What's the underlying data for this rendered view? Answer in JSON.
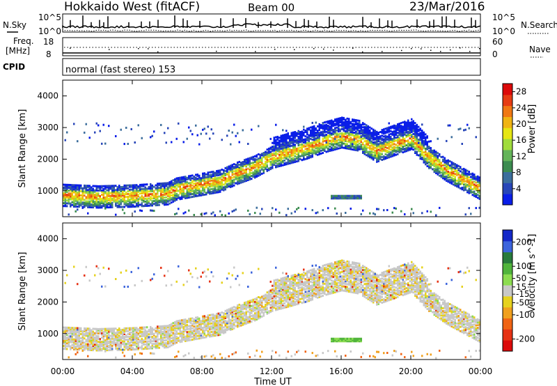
{
  "header": {
    "station": "Hokkaido West (fitACF)",
    "beam": "Beam 00",
    "date": "23/Mar/2016"
  },
  "strip": {
    "nsky_label": "N.Sky",
    "nsearch_label": "N.Search",
    "freq_label_1": "Freq.",
    "freq_label_2": "[MHz]",
    "nave_label": "Nave",
    "cpid_label": "CPID",
    "noise_tick_top": "10^5",
    "noise_tick_bottom": "10^0",
    "freq_tick_top": "18",
    "freq_tick_bottom": "8",
    "nave_tick_top": "60",
    "nave_tick_bottom": "0",
    "cpid_text": "normal (fast stereo) 153"
  },
  "colors": {
    "power": [
      "#0a1ee8",
      "#2846b8",
      "#3c6e9c",
      "#3c8c50",
      "#64b45a",
      "#a0dc3c",
      "#e6e614",
      "#f0b414",
      "#f07814",
      "#e63c14",
      "#dc0a0a"
    ],
    "velocity": [
      "#1428c8",
      "#3c64dc",
      "#287a3c",
      "#50b43c",
      "#8cdc50",
      "#c8c8c8",
      "#e6d21e",
      "#f0a01e",
      "#f06414",
      "#e63214",
      "#dc0a0a"
    ]
  },
  "chart_data": [
    {
      "type": "heatmap",
      "name": "power",
      "ylabel": "Slant Range [km]",
      "yticks": [
        "1000",
        "2000",
        "3000",
        "4000"
      ],
      "ylim": [
        180,
        4500
      ],
      "xlim": [
        "00:00",
        "24:00"
      ],
      "colorbar_label": "Power [dB]",
      "colorbar_ticks": [
        "4",
        "8",
        "12",
        "16",
        "20",
        "24",
        "28"
      ],
      "colorbar_range": [
        0,
        30
      ],
      "echo_band_center_km": [
        [
          0,
          900
        ],
        [
          2,
          850
        ],
        [
          4,
          880
        ],
        [
          6,
          950
        ],
        [
          6.5,
          1100
        ],
        [
          8,
          1250
        ],
        [
          9,
          1350
        ],
        [
          10,
          1600
        ],
        [
          11,
          1800
        ],
        [
          12,
          2100
        ],
        [
          13,
          2250
        ],
        [
          14,
          2400
        ],
        [
          15,
          2600
        ],
        [
          16,
          2750
        ],
        [
          17,
          2650
        ],
        [
          18,
          2300
        ],
        [
          19,
          2500
        ],
        [
          20,
          2700
        ],
        [
          21,
          2100
        ],
        [
          22,
          1700
        ],
        [
          23,
          1400
        ],
        [
          24,
          1100
        ]
      ],
      "patch_center": {
        "time_h": 16.3,
        "range_km": 850
      }
    },
    {
      "type": "heatmap",
      "name": "velocity",
      "ylabel": "Slant Range [km]",
      "yticks": [
        "1000",
        "2000",
        "3000",
        "4000"
      ],
      "ylim": [
        180,
        4500
      ],
      "xlim": [
        "00:00",
        "24:00"
      ],
      "colorbar_label": "Velocity [m s^-1]",
      "colorbar_ticks": [
        "200",
        "100",
        "50",
        "15",
        "-15",
        "-50",
        "-100",
        "-200"
      ],
      "colorbar_range": [
        -250,
        250
      ]
    }
  ],
  "xaxis": {
    "ticks": [
      "00:00",
      "04:00",
      "08:00",
      "12:00",
      "16:00",
      "20:00",
      "00:00"
    ],
    "label": "Time UT"
  }
}
